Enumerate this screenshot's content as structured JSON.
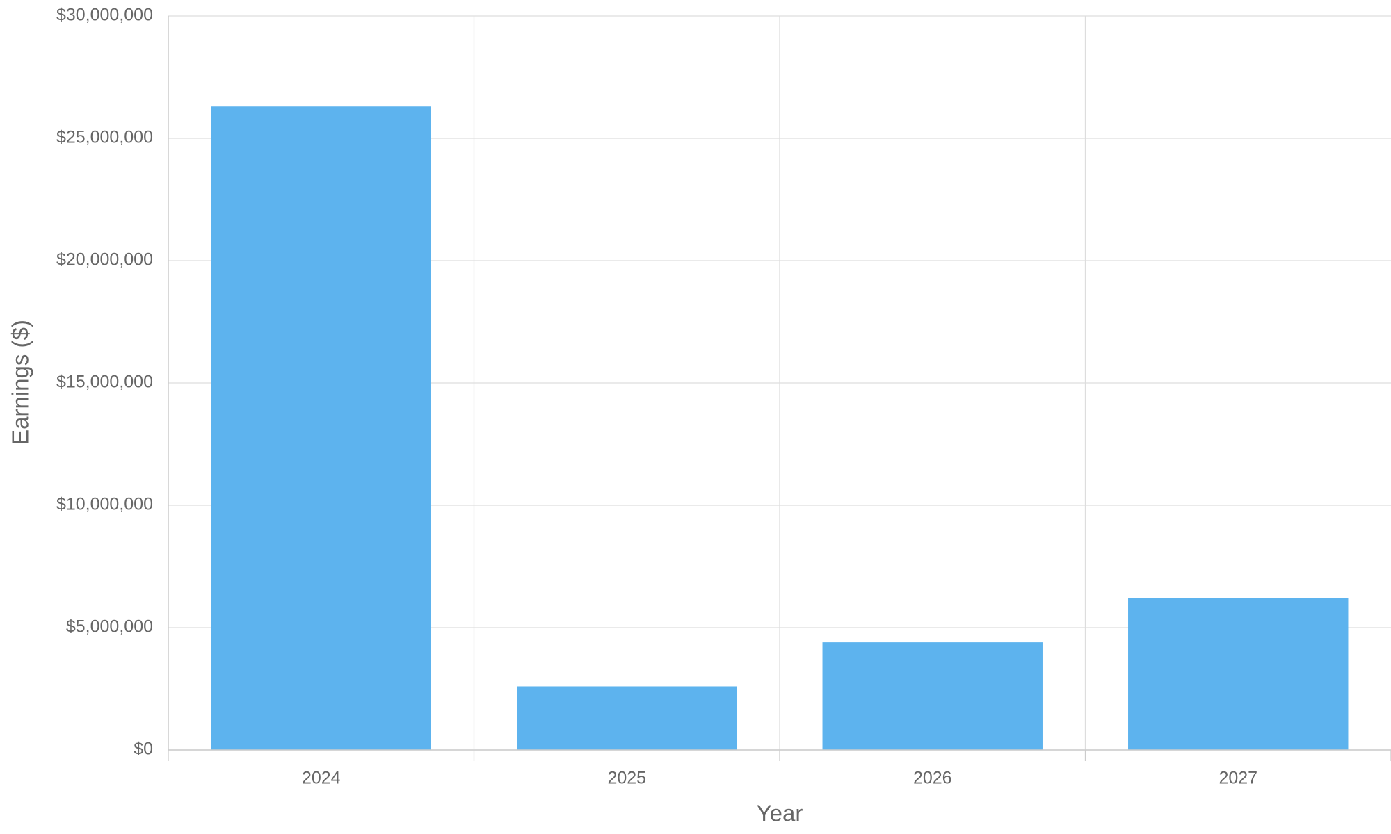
{
  "chart_data": {
    "type": "bar",
    "x_label": "Year",
    "y_label": "Earnings ($)",
    "categories": [
      "2024",
      "2025",
      "2026",
      "2027"
    ],
    "values": [
      26300000,
      2600000,
      4400000,
      6200000
    ],
    "color": "#5db3ee",
    "ylim": [
      0,
      30000000
    ],
    "yticks": [
      {
        "value": 0,
        "label": "$0"
      },
      {
        "value": 5000000,
        "label": "$5,000,000"
      },
      {
        "value": 10000000,
        "label": "$10,000,000"
      },
      {
        "value": 15000000,
        "label": "$15,000,000"
      },
      {
        "value": 20000000,
        "label": "$20,000,000"
      },
      {
        "value": 25000000,
        "label": "$25,000,000"
      },
      {
        "value": 30000000,
        "label": "$30,000,000"
      }
    ],
    "grid": true
  }
}
